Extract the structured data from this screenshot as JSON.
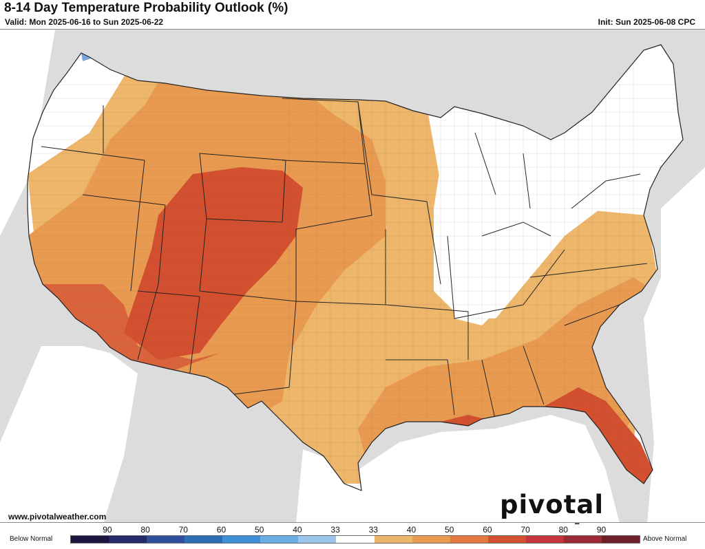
{
  "header": {
    "title": "8-14 Day Temperature Probability Outlook (%)",
    "valid": "Valid: Mon 2025-06-16 to Sun 2025-06-22",
    "init": "Init: Sun 2025-06-08 CPC"
  },
  "footer": {
    "url": "www.pivotalweather.com",
    "logo": "pivotal weather"
  },
  "legend": {
    "below_label": "Below Normal",
    "above_label": "Above Normal",
    "tick_labels": [
      "90",
      "80",
      "70",
      "60",
      "50",
      "40",
      "33",
      "33",
      "40",
      "50",
      "60",
      "70",
      "80",
      "90"
    ],
    "colors": [
      "#1c1540",
      "#232a6a",
      "#2e4f9a",
      "#2c6fb8",
      "#3f8fd6",
      "#6aaee6",
      "#9cc6ec",
      "#ffffff",
      "#edb66a",
      "#e89a50",
      "#e27a3e",
      "#d24f30",
      "#c4343a",
      "#9c2a36",
      "#6e1f2a"
    ]
  },
  "map": {
    "category_colors": {
      "above_33": "#edb66a",
      "above_40": "#e89a50",
      "above_50": "#df7a3e",
      "above_60": "#d24f30",
      "below_33": "#a9c8ea",
      "near_normal": "#ffffff",
      "land_outside": "#dcdcdc",
      "water": "#ffffff"
    }
  }
}
